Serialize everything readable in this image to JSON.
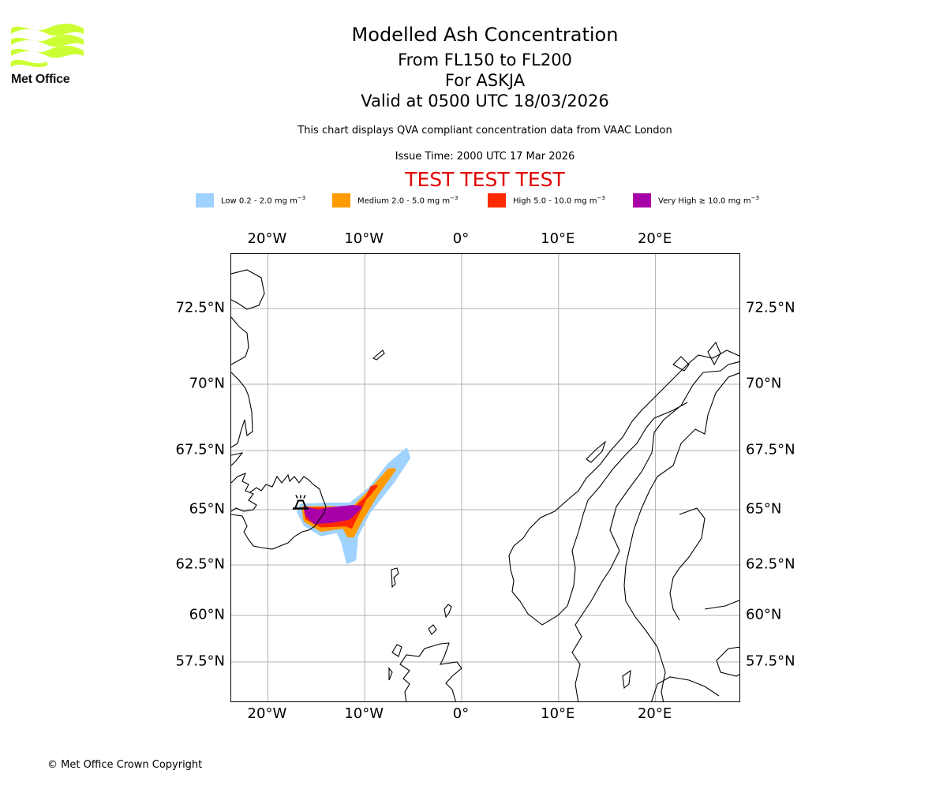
{
  "logo": {
    "brand": "Met Office",
    "icon": "met-office-wave-logo",
    "color": "#ccff33"
  },
  "header": {
    "title": "Modelled Ash Concentration",
    "levels": "From FL150 to FL200",
    "volcano": "For ASKJA",
    "valid": "Valid at 0500 UTC 18/03/2026",
    "subtitle": "This chart displays QVA compliant concentration data from VAAC London",
    "issue_time": "Issue Time: 2000 UTC 17 Mar 2026",
    "test_banner": "TEST TEST TEST",
    "test_color": "#e00000"
  },
  "legend": [
    {
      "label": "Low 0.2 - 2.0 mg m",
      "unit_exp": "−3",
      "color": "#a0d2ff"
    },
    {
      "label": "Medium 2.0 - 5.0 mg m",
      "unit_exp": "−3",
      "color": "#ff9a00"
    },
    {
      "label": "High 5.0 - 10.0 mg m",
      "unit_exp": "−3",
      "color": "#ff2a00"
    },
    {
      "label": "Very High  ≥  10.0 mg m",
      "unit_exp": "−3",
      "color": "#a800a8"
    }
  ],
  "chart_data": {
    "type": "heatmap",
    "title": "Modelled Ash Concentration",
    "projection": "map",
    "extent": {
      "lon": [
        -23.8,
        28.6
      ],
      "lat": [
        55.7,
        74.2
      ]
    },
    "grid": true,
    "lon_ticks": [
      -20,
      -10,
      0,
      10,
      20
    ],
    "lon_tick_labels": [
      "20°W",
      "10°W",
      "0°",
      "10°E",
      "20°E"
    ],
    "lat_ticks": [
      72.5,
      70,
      67.5,
      65,
      62.5,
      60,
      57.5
    ],
    "lat_tick_labels": [
      "72.5°N",
      "70°N",
      "67.5°N",
      "65°N",
      "62.5°N",
      "60°N",
      "57.5°N"
    ],
    "volcano": {
      "name": "ASKJA",
      "lon": -16.7,
      "lat": 65.05,
      "symbol": "volcano-icon"
    },
    "legend_position": "top",
    "categories": [
      "Low",
      "Medium",
      "High",
      "Very High"
    ],
    "ash_plume": {
      "low": [
        [
          -16.6,
          65.2
        ],
        [
          -14,
          65.25
        ],
        [
          -11.5,
          65.25
        ],
        [
          -9.5,
          65.9
        ],
        [
          -7.6,
          66.9
        ],
        [
          -5.7,
          67.55
        ],
        [
          -5.4,
          67.2
        ],
        [
          -7,
          66.2
        ],
        [
          -9.5,
          64.9
        ],
        [
          -10.8,
          63.8
        ],
        [
          -11,
          62.75
        ],
        [
          -11.8,
          62.6
        ],
        [
          -12.3,
          63.5
        ],
        [
          -12.8,
          64.0
        ],
        [
          -14.5,
          63.85
        ],
        [
          -16.2,
          64.3
        ],
        [
          -16.9,
          64.9
        ]
      ],
      "medium": [
        [
          -16.4,
          65.1
        ],
        [
          -13.5,
          65.1
        ],
        [
          -11.3,
          65.05
        ],
        [
          -9.5,
          65.8
        ],
        [
          -7.5,
          66.7
        ],
        [
          -6.9,
          66.7
        ],
        [
          -8.8,
          65.6
        ],
        [
          -10.5,
          64.4
        ],
        [
          -11.2,
          63.8
        ],
        [
          -11.7,
          63.8
        ],
        [
          -12.2,
          64.2
        ],
        [
          -14.5,
          64.05
        ],
        [
          -16.2,
          64.5
        ]
      ],
      "high": [
        [
          -16.2,
          65.05
        ],
        [
          -13.2,
          65.05
        ],
        [
          -11.2,
          65.0
        ],
        [
          -9.6,
          65.6
        ],
        [
          -8.8,
          66.0
        ],
        [
          -9.3,
          65.95
        ],
        [
          -10.6,
          64.9
        ],
        [
          -11.4,
          64.2
        ],
        [
          -11.9,
          64.3
        ],
        [
          -14.5,
          64.25
        ],
        [
          -16,
          64.6
        ]
      ],
      "very_high": [
        [
          -16.2,
          65.1
        ],
        [
          -14.8,
          64.95
        ],
        [
          -13.6,
          65.05
        ],
        [
          -11.2,
          65.15
        ],
        [
          -10.4,
          65.1
        ],
        [
          -11.6,
          64.6
        ],
        [
          -13.5,
          64.45
        ],
        [
          -15.2,
          64.4
        ],
        [
          -16.0,
          64.75
        ]
      ]
    }
  },
  "footer": {
    "copyright": "© Met Office Crown Copyright"
  }
}
